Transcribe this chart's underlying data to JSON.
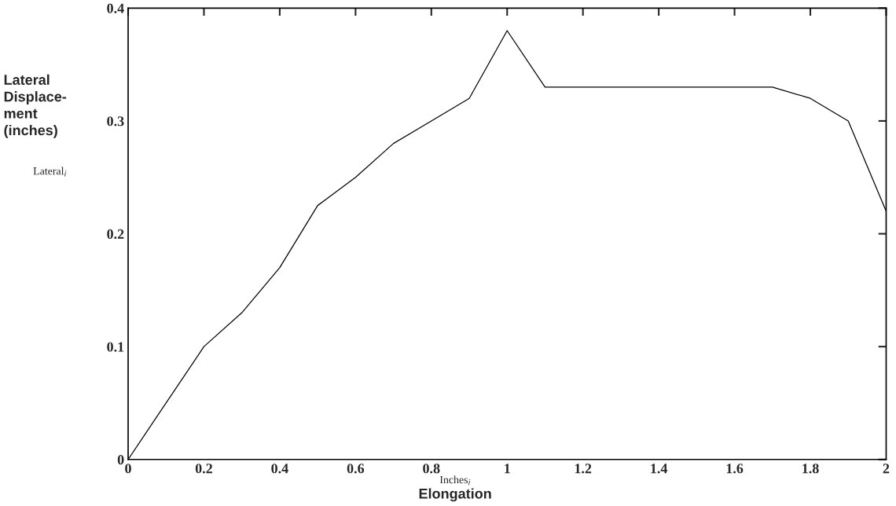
{
  "chart_data": {
    "type": "line",
    "x": [
      0,
      0.1,
      0.2,
      0.3,
      0.4,
      0.5,
      0.6,
      0.7,
      0.8,
      0.9,
      1.0,
      1.1,
      1.2,
      1.3,
      1.4,
      1.5,
      1.6,
      1.7,
      1.8,
      1.9,
      2.0
    ],
    "series": [
      {
        "color": "#000000",
        "values": [
          0,
          0.05,
          0.1,
          0.13,
          0.17,
          0.225,
          0.25,
          0.28,
          0.3,
          0.32,
          0.38,
          0.33,
          0.33,
          0.33,
          0.33,
          0.33,
          0.33,
          0.33,
          0.32,
          0.3,
          0.22
        ]
      }
    ],
    "xlabel": "Inches$_{i}$",
    "ylabel": "Lateral\nDisplace-\nment\n(inches)",
    "annotations": [
      "Lateral$_{i}$",
      "Elongation"
    ],
    "xlim": [
      0,
      2
    ],
    "ylim": [
      0,
      0.4
    ],
    "xticks": [
      0,
      0.2,
      0.4,
      0.6,
      0.8,
      1,
      1.2,
      1.4,
      1.6,
      1.8,
      2
    ],
    "yticks": [
      0,
      0.1,
      0.2,
      0.3,
      0.4
    ],
    "grid": false,
    "marker": "none",
    "line_style": "solid"
  }
}
